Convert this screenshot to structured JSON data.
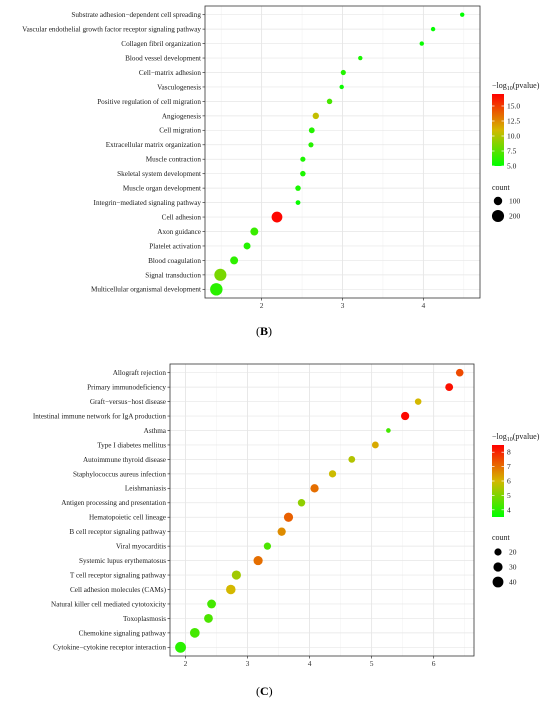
{
  "panel_labels": {
    "b": "B",
    "c": "C"
  },
  "legend": {
    "color_title": "−log10(pvalue)",
    "size_title": "count"
  },
  "chart_data": [
    {
      "type": "scatter",
      "panel": "B",
      "title": "",
      "xlabel": "",
      "ylabel": "",
      "xlim": [
        1.3,
        4.7
      ],
      "xticks": [
        2,
        3,
        4
      ],
      "grid": true,
      "legend_position": "right",
      "color_scale": {
        "min": 5.0,
        "max": 17.0,
        "low": "#00ff00",
        "mid": "#d4b800",
        "high": "#ff0000",
        "ticks": [
          5.0,
          7.5,
          10.0,
          12.5,
          15.0
        ]
      },
      "size_scale": {
        "min": 30,
        "max": 250,
        "ticks": [
          100,
          200
        ]
      },
      "terms": [
        {
          "label": "Substrate adhesion−dependent cell spreading",
          "x": 4.48,
          "pvalue": 5.0,
          "count": 18
        },
        {
          "label": "Vascular endothelial growth factor receptor signaling pathway",
          "x": 4.12,
          "pvalue": 5.1,
          "count": 20
        },
        {
          "label": "Collagen fibril organization",
          "x": 3.98,
          "pvalue": 5.2,
          "count": 22
        },
        {
          "label": "Blood vessel development",
          "x": 3.22,
          "pvalue": 5.7,
          "count": 30
        },
        {
          "label": "Cell−matrix adhesion",
          "x": 3.01,
          "pvalue": 6.0,
          "count": 40
        },
        {
          "label": "Vasculogenesis",
          "x": 2.99,
          "pvalue": 5.3,
          "count": 30
        },
        {
          "label": "Positive regulation of cell migration",
          "x": 2.84,
          "pvalue": 7.0,
          "count": 45
        },
        {
          "label": "Angiogenesis",
          "x": 2.67,
          "pvalue": 10.5,
          "count": 60
        },
        {
          "label": "Cell migration",
          "x": 2.62,
          "pvalue": 6.0,
          "count": 50
        },
        {
          "label": "Extracellular matrix organization",
          "x": 2.61,
          "pvalue": 6.1,
          "count": 40
        },
        {
          "label": "Muscle contraction",
          "x": 2.51,
          "pvalue": 5.8,
          "count": 40
        },
        {
          "label": "Skeletal system development",
          "x": 2.51,
          "pvalue": 5.8,
          "count": 45
        },
        {
          "label": "Muscle organ development",
          "x": 2.45,
          "pvalue": 5.7,
          "count": 45
        },
        {
          "label": "Integrin−mediated signaling pathway",
          "x": 2.45,
          "pvalue": 5.2,
          "count": 35
        },
        {
          "label": "Cell adhesion",
          "x": 2.19,
          "pvalue": 16.8,
          "count": 160
        },
        {
          "label": "Axon guidance",
          "x": 1.91,
          "pvalue": 6.6,
          "count": 90
        },
        {
          "label": "Platelet activation",
          "x": 1.82,
          "pvalue": 6.0,
          "count": 70
        },
        {
          "label": "Blood coagulation",
          "x": 1.66,
          "pvalue": 6.3,
          "count": 90
        },
        {
          "label": "Signal transduction",
          "x": 1.49,
          "pvalue": 8.4,
          "count": 200
        },
        {
          "label": "Multicellular organismal development",
          "x": 1.44,
          "pvalue": 6.2,
          "count": 210
        }
      ]
    },
    {
      "type": "scatter",
      "panel": "C",
      "title": "",
      "xlabel": "",
      "ylabel": "",
      "xlim": [
        1.75,
        6.65
      ],
      "xticks": [
        2,
        3,
        4,
        5,
        6
      ],
      "grid": true,
      "legend_position": "right",
      "color_scale": {
        "min": 3.5,
        "max": 8.5,
        "low": "#00ff00",
        "mid": "#d4b800",
        "high": "#ff0000",
        "ticks": [
          4,
          5,
          6,
          7,
          8
        ]
      },
      "size_scale": {
        "min": 8,
        "max": 45,
        "ticks": [
          20,
          30,
          40
        ]
      },
      "terms": [
        {
          "label": "Allograft rejection",
          "x": 6.42,
          "pvalue": 7.5,
          "count": 22
        },
        {
          "label": "Primary immunodeficiency",
          "x": 6.25,
          "pvalue": 8.3,
          "count": 23
        },
        {
          "label": "Graft−versus−host disease",
          "x": 5.75,
          "pvalue": 6.0,
          "count": 17
        },
        {
          "label": "Intestinal immune network for IgA production",
          "x": 5.54,
          "pvalue": 8.4,
          "count": 25
        },
        {
          "label": "Asthma",
          "x": 5.27,
          "pvalue": 4.3,
          "count": 10
        },
        {
          "label": "Type I diabetes mellitus",
          "x": 5.06,
          "pvalue": 6.2,
          "count": 18
        },
        {
          "label": "Autoimmune thyroid disease",
          "x": 4.68,
          "pvalue": 5.6,
          "count": 18
        },
        {
          "label": "Staphylococcus aureus infection",
          "x": 4.37,
          "pvalue": 5.9,
          "count": 20
        },
        {
          "label": "Leishmaniasis",
          "x": 4.08,
          "pvalue": 7.0,
          "count": 25
        },
        {
          "label": "Antigen processing and presentation",
          "x": 3.87,
          "pvalue": 5.2,
          "count": 21
        },
        {
          "label": "Hematopoietic cell lineage",
          "x": 3.66,
          "pvalue": 7.2,
          "count": 30
        },
        {
          "label": "B cell receptor signaling pathway",
          "x": 3.55,
          "pvalue": 6.6,
          "count": 25
        },
        {
          "label": "Viral myocarditis",
          "x": 3.32,
          "pvalue": 4.4,
          "count": 20
        },
        {
          "label": "Systemic lupus erythematosus",
          "x": 3.17,
          "pvalue": 7.0,
          "count": 30
        },
        {
          "label": "T cell receptor signaling pathway",
          "x": 2.82,
          "pvalue": 5.4,
          "count": 30
        },
        {
          "label": "Cell adhesion molecules (CAMs)",
          "x": 2.73,
          "pvalue": 6.0,
          "count": 32
        },
        {
          "label": "Natural killer cell mediated cytotoxicity",
          "x": 2.42,
          "pvalue": 4.3,
          "count": 28
        },
        {
          "label": "Toxoplasmosis",
          "x": 2.37,
          "pvalue": 4.4,
          "count": 28
        },
        {
          "label": "Chemokine signaling pathway",
          "x": 2.15,
          "pvalue": 4.3,
          "count": 33
        },
        {
          "label": "Cytokine−cytokine receptor interaction",
          "x": 1.92,
          "pvalue": 4.0,
          "count": 40
        }
      ]
    }
  ]
}
